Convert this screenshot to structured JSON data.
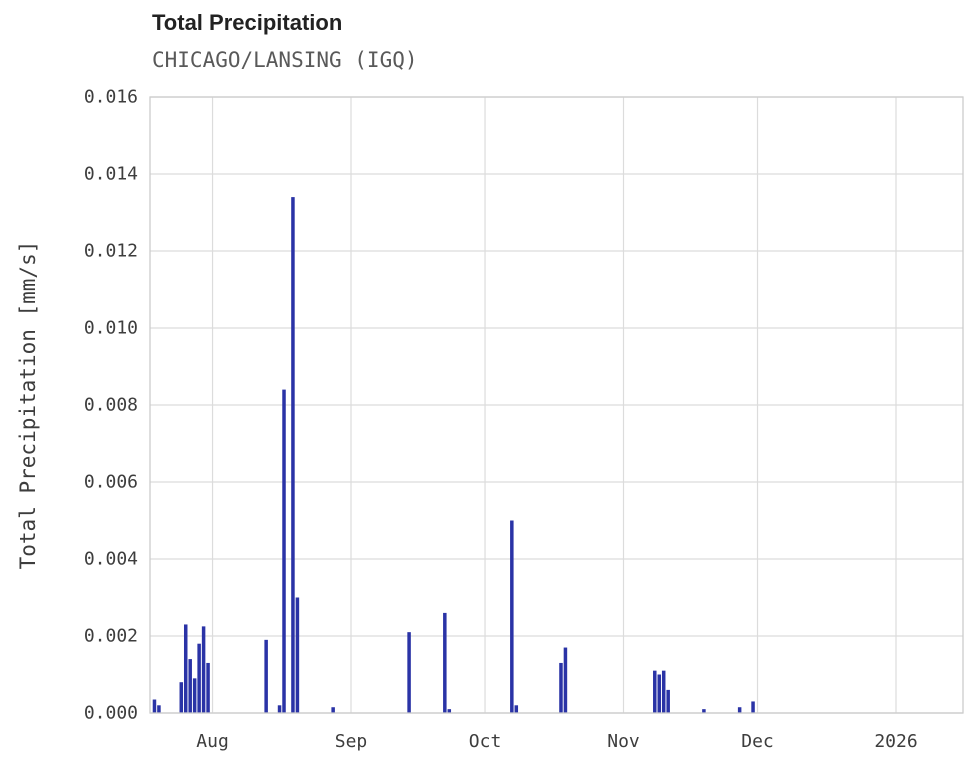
{
  "colors": {
    "bar": "#2a33a6",
    "grid": "#dcdcdc",
    "spine": "#cccccc",
    "tick_label": "#3d3d3d",
    "title": "#222222",
    "subtitle": "#595959",
    "background": "#ffffff"
  },
  "chart_data": {
    "type": "bar",
    "title": "Total Precipitation",
    "subtitle": "CHICAGO/LANSING (IGQ)",
    "xlabel": "",
    "ylabel": "Total Precipitation [mm/s]",
    "ylim": [
      0,
      0.016
    ],
    "x_domain": [
      "2025-07-18",
      "2026-01-16"
    ],
    "grid": true,
    "legend": "none",
    "y_ticks": [
      {
        "value": 0.0,
        "label": "0.000"
      },
      {
        "value": 0.002,
        "label": "0.002"
      },
      {
        "value": 0.004,
        "label": "0.004"
      },
      {
        "value": 0.006,
        "label": "0.006"
      },
      {
        "value": 0.008,
        "label": "0.008"
      },
      {
        "value": 0.01,
        "label": "0.010"
      },
      {
        "value": 0.012,
        "label": "0.012"
      },
      {
        "value": 0.014,
        "label": "0.014"
      },
      {
        "value": 0.016,
        "label": "0.016"
      }
    ],
    "x_ticks": [
      {
        "date": "2025-08-01",
        "label": "Aug"
      },
      {
        "date": "2025-09-01",
        "label": "Sep"
      },
      {
        "date": "2025-10-01",
        "label": "Oct"
      },
      {
        "date": "2025-11-01",
        "label": "Nov"
      },
      {
        "date": "2025-12-01",
        "label": "Dec"
      },
      {
        "date": "2026-01-01",
        "label": "2026"
      }
    ],
    "points": [
      {
        "date": "2025-07-19",
        "value": 0.00035
      },
      {
        "date": "2025-07-20",
        "value": 0.0002
      },
      {
        "date": "2025-07-25",
        "value": 0.0008
      },
      {
        "date": "2025-07-26",
        "value": 0.0023
      },
      {
        "date": "2025-07-27",
        "value": 0.0014
      },
      {
        "date": "2025-07-28",
        "value": 0.0009
      },
      {
        "date": "2025-07-29",
        "value": 0.0018
      },
      {
        "date": "2025-07-30",
        "value": 0.00225
      },
      {
        "date": "2025-07-31",
        "value": 0.0013
      },
      {
        "date": "2025-08-13",
        "value": 0.0019
      },
      {
        "date": "2025-08-16",
        "value": 0.0002
      },
      {
        "date": "2025-08-17",
        "value": 0.0084
      },
      {
        "date": "2025-08-19",
        "value": 0.0134
      },
      {
        "date": "2025-08-20",
        "value": 0.003
      },
      {
        "date": "2025-08-28",
        "value": 0.00015
      },
      {
        "date": "2025-09-14",
        "value": 0.0021
      },
      {
        "date": "2025-09-22",
        "value": 0.0026
      },
      {
        "date": "2025-09-23",
        "value": 0.0001
      },
      {
        "date": "2025-10-07",
        "value": 0.005
      },
      {
        "date": "2025-10-08",
        "value": 0.0002
      },
      {
        "date": "2025-10-18",
        "value": 0.0013
      },
      {
        "date": "2025-10-19",
        "value": 0.0017
      },
      {
        "date": "2025-11-08",
        "value": 0.0011
      },
      {
        "date": "2025-11-09",
        "value": 0.001
      },
      {
        "date": "2025-11-10",
        "value": 0.0011
      },
      {
        "date": "2025-11-11",
        "value": 0.0006
      },
      {
        "date": "2025-11-19",
        "value": 0.0001
      },
      {
        "date": "2025-11-27",
        "value": 0.00015
      },
      {
        "date": "2025-11-30",
        "value": 0.0003
      }
    ]
  }
}
